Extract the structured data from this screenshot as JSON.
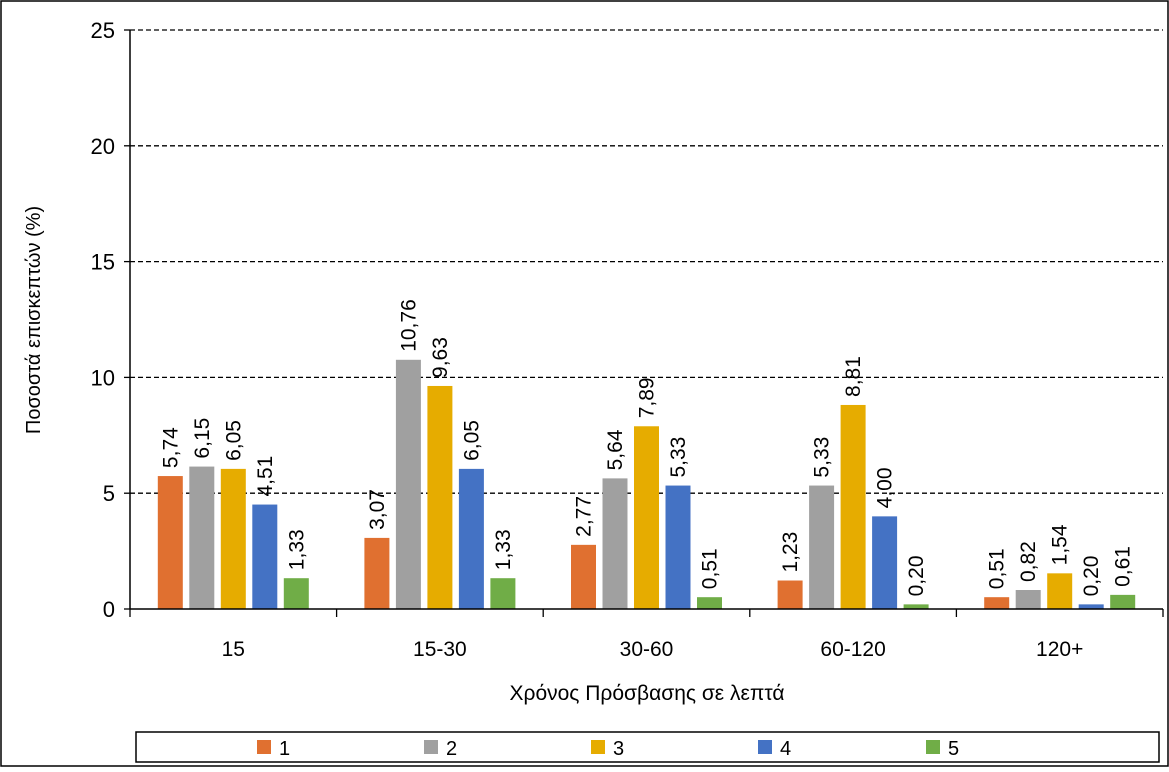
{
  "chart_data": {
    "type": "bar",
    "title": "",
    "xlabel": "Χρόνος Πρόσβασης σε λεπτά",
    "ylabel": "Ποσοστά επισκεπτών (%)",
    "ylim": [
      0,
      25
    ],
    "yticks": [
      0,
      5,
      10,
      15,
      20,
      25
    ],
    "grid": true,
    "legend_position": "bottom",
    "categories": [
      "15",
      "15-30",
      "30-60",
      "60-120",
      "120+"
    ],
    "series": [
      {
        "name": "1",
        "color": "#E07030",
        "values": [
          5.74,
          3.07,
          2.77,
          1.23,
          0.51
        ],
        "labels": [
          "5,74",
          "3,07",
          "2,77",
          "1,23",
          "0,51"
        ]
      },
      {
        "name": "2",
        "color": "#A0A0A0",
        "values": [
          6.15,
          10.76,
          5.64,
          5.33,
          0.82
        ],
        "labels": [
          "6,15",
          "10,76",
          "5,64",
          "5,33",
          "0,82"
        ]
      },
      {
        "name": "3",
        "color": "#E6AC00",
        "values": [
          6.05,
          9.63,
          7.89,
          8.81,
          1.54
        ],
        "labels": [
          "6,05",
          "9,63",
          "7,89",
          "8,81",
          "1,54"
        ]
      },
      {
        "name": "4",
        "color": "#4472C4",
        "values": [
          4.51,
          6.05,
          5.33,
          4.0,
          0.2
        ],
        "labels": [
          "4,51",
          "6,05",
          "5,33",
          "4,00",
          "0,20"
        ]
      },
      {
        "name": "5",
        "color": "#70AD47",
        "values": [
          1.33,
          1.33,
          0.51,
          0.2,
          0.61
        ],
        "labels": [
          "1,33",
          "1,33",
          "0,51",
          "0,20",
          "0,61"
        ]
      }
    ]
  }
}
